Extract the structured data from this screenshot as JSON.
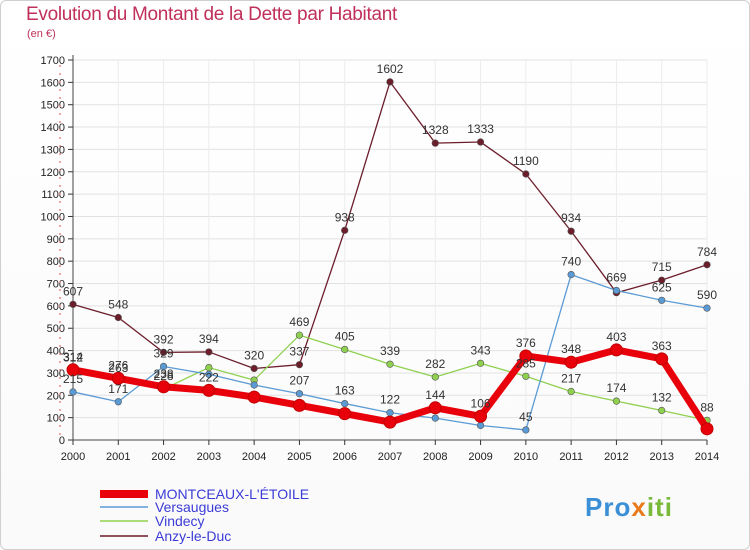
{
  "chart_data": {
    "type": "line",
    "title": "Evolution du Montant de la Dette par Habitant",
    "subtitle": "(en €)",
    "x": [
      "2000",
      "2001",
      "2002",
      "2003",
      "2004",
      "2005",
      "2006",
      "2007",
      "2008",
      "2009",
      "2010",
      "2011",
      "2012",
      "2013",
      "2014"
    ],
    "yticks": [
      0,
      100,
      200,
      300,
      400,
      500,
      600,
      700,
      800,
      900,
      1000,
      1100,
      1200,
      1300,
      1400,
      1500,
      1600,
      1700
    ],
    "ylim": [
      0,
      1700
    ],
    "grid": true,
    "legend_position": "bottom-left",
    "series": [
      {
        "name": "MONTCEAUX-L'ÉTOILE",
        "color": "#e8000b",
        "values": [
          314,
          276,
          238,
          222,
          192,
          155,
          118,
          80,
          144,
          106,
          376,
          348,
          403,
          363,
          50
        ],
        "labels": [
          "314",
          "276",
          "238",
          "222",
          "",
          "",
          "",
          "",
          "144",
          "106",
          "376",
          "348",
          "403",
          "363",
          ""
        ]
      },
      {
        "name": "Versaugues",
        "color": "#5b9bd5",
        "values": [
          215,
          171,
          329,
          294,
          246,
          207,
          163,
          122,
          98,
          65,
          45,
          740,
          669,
          625,
          590
        ],
        "labels": [
          "215",
          "171",
          "329",
          "",
          "",
          "207",
          "163",
          "122",
          "",
          "",
          "45",
          "740",
          "669",
          "625",
          "590"
        ]
      },
      {
        "name": "Vindecy",
        "color": "#8fd14f",
        "values": [
          312,
          263,
          228,
          324,
          268,
          469,
          405,
          339,
          282,
          343,
          285,
          217,
          174,
          132,
          88
        ],
        "labels": [
          "312",
          "263",
          "228",
          "",
          "",
          "469",
          "405",
          "339",
          "282",
          "343",
          "285",
          "217",
          "174",
          "132",
          "88"
        ]
      },
      {
        "name": "Anzy-le-Duc",
        "color": "#6b1d2a",
        "values": [
          607,
          548,
          392,
          394,
          320,
          337,
          938,
          1602,
          1328,
          1333,
          1190,
          934,
          659,
          715,
          784
        ],
        "labels": [
          "607",
          "548",
          "392",
          "394",
          "320",
          "337",
          "938",
          "1602",
          "1328",
          "1333",
          "1190",
          "934",
          "",
          "715",
          "784"
        ]
      }
    ]
  },
  "logo": {
    "p1": "Pro",
    "p2": "x",
    "p3": "iti"
  }
}
